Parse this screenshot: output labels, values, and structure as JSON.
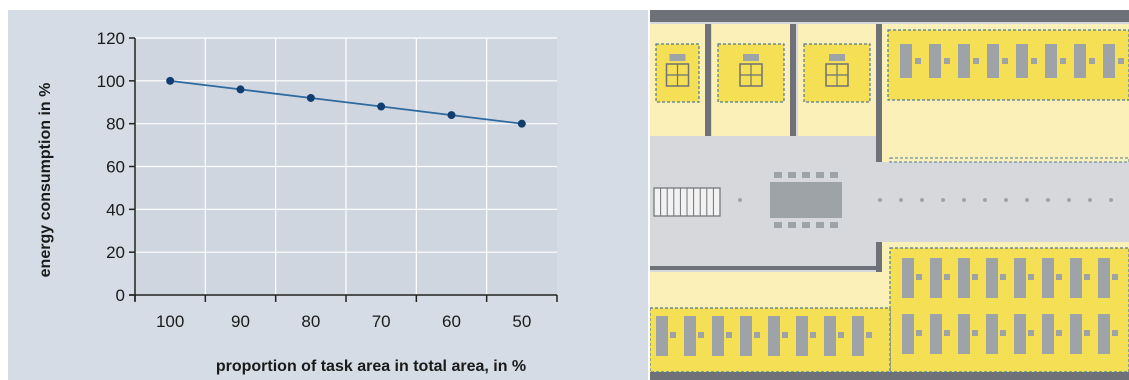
{
  "chart_data": {
    "type": "line",
    "xlabel": "proportion of task area in total area, in %",
    "ylabel": "energy consumption in %",
    "x": [
      100,
      90,
      80,
      70,
      60,
      50
    ],
    "x_tick_labels": [
      "100",
      "90",
      "80",
      "70",
      "60",
      "50"
    ],
    "series": [
      {
        "values": [
          100,
          96,
          92,
          88,
          84,
          80
        ]
      }
    ],
    "ylim": [
      0,
      120
    ],
    "y_ticks": [
      0,
      20,
      40,
      60,
      80,
      100,
      120
    ],
    "y_tick_labels": [
      "0",
      "20",
      "40",
      "60",
      "80",
      "100",
      "120"
    ],
    "x_axis_reversed": true,
    "grid": true,
    "colors": {
      "panel_background": "#d5dce5",
      "plot_background": "#d0d6df",
      "grid": "#ffffff",
      "line": "#2d6aa0",
      "marker": "#123d70",
      "axis": "#222222"
    }
  },
  "floor_plan": {
    "colors": {
      "background": "#bfc3c8",
      "corridor": "#d6d8db",
      "wall": "#6e7278",
      "task_area": "#f5df55",
      "ambient_area": "#fbf0b8",
      "furniture": "#9ea3a8",
      "boundary": "#4f7a9c"
    }
  }
}
